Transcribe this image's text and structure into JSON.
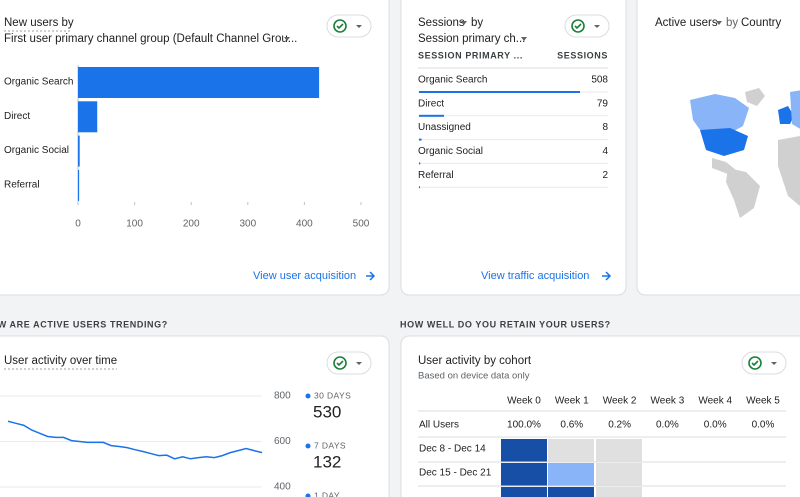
{
  "acquisition_card": {
    "title": "New users by",
    "subtitle": "First user primary channel group (Default Channel Grou...",
    "chart": {
      "type": "bar",
      "orientation": "horizontal",
      "categories": [
        "Organic Search",
        "Direct",
        "Organic Social",
        "Referral"
      ],
      "values": [
        426,
        34,
        3,
        2
      ],
      "color": "#1a73e8",
      "xlim": [
        0,
        500
      ],
      "xticks": [
        0,
        100,
        200,
        300,
        400,
        500
      ]
    },
    "link": "View user acquisition"
  },
  "traffic_card": {
    "title": "Sessions",
    "title_suffix": "by",
    "subtitle": "Session primary ch...",
    "columns": [
      "SESSION PRIMARY ...",
      "SESSIONS"
    ],
    "rows": [
      [
        "Organic Search",
        508
      ],
      [
        "Direct",
        79
      ],
      [
        "Unassigned",
        8
      ],
      [
        "Organic Social",
        4
      ],
      [
        "Referral",
        2
      ]
    ],
    "bar_color": "#1a73e8",
    "link": "View traffic acquisition"
  },
  "country_card": {
    "title": "Active users",
    "title_suffix": "by",
    "dimension": "Country"
  },
  "sections": [
    "HOW ARE ACTIVE USERS TRENDING?",
    "HOW WELL DO YOU RETAIN YOUR USERS?"
  ],
  "activity_card": {
    "title": "User activity over time",
    "chart": {
      "type": "line",
      "values": [
        689,
        680,
        671,
        650,
        636,
        622,
        618,
        618,
        604,
        600,
        596,
        596,
        596,
        582,
        578,
        573,
        564,
        556,
        547,
        538,
        540,
        524,
        533,
        524,
        529,
        533,
        529,
        538,
        551,
        560,
        569,
        560,
        551
      ],
      "color": "#1a73e8",
      "ylim": [
        400,
        800
      ],
      "yticks": [
        400,
        600,
        800
      ]
    },
    "legend": [
      {
        "label": "30 DAYS",
        "value": 530
      },
      {
        "label": "7 DAYS",
        "value": 132
      },
      {
        "label": "1 DAY"
      }
    ]
  },
  "cohort_card": {
    "title": "User activity by cohort",
    "note": "Based on device data only",
    "columns": [
      "Week 0",
      "Week 1",
      "Week 2",
      "Week 3",
      "Week 4",
      "Week 5"
    ],
    "rows": [
      {
        "label": "All Users",
        "cells": [
          "100.0%",
          "0.6%",
          "0.2%",
          "0.0%",
          "0.0%",
          "0.0%"
        ]
      },
      {
        "label": "Dec 8 - Dec 14"
      },
      {
        "label": "Dec 15 - Dec 21"
      }
    ]
  }
}
